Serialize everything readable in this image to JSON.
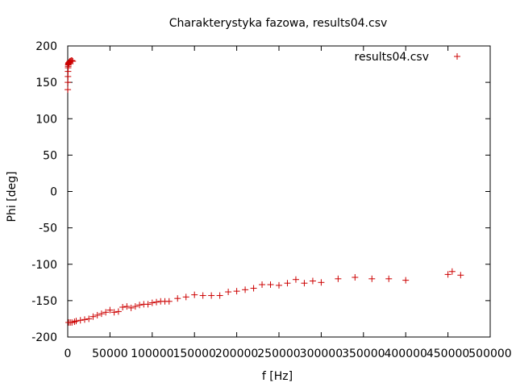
{
  "chart_data": {
    "type": "scatter",
    "title": "Charakterystyka fazowa, results04.csv",
    "xlabel": "f [Hz]",
    "ylabel": "Phi [deg]",
    "xlim": [
      0,
      500000
    ],
    "ylim": [
      -200,
      200
    ],
    "x_ticks": [
      "0",
      "50000",
      "100000",
      "150000",
      "200000",
      "250000",
      "300000",
      "350000",
      "400000",
      "450000",
      "500000"
    ],
    "x_tick_values": [
      0,
      50000,
      100000,
      150000,
      200000,
      250000,
      300000,
      350000,
      400000,
      450000,
      500000
    ],
    "y_ticks": [
      "200",
      "150",
      "100",
      "50",
      "0",
      "-50",
      "-100",
      "-150",
      "-200"
    ],
    "y_tick_values": [
      200,
      150,
      100,
      50,
      0,
      -50,
      -100,
      -150,
      -200
    ],
    "grid": false,
    "legend_position": "top-right",
    "marker": "+",
    "series": [
      {
        "name": "results04.csv",
        "color": "#cc0000",
        "x": [
          100,
          200,
          300,
          400,
          500,
          600,
          700,
          800,
          900,
          1000,
          1200,
          1500,
          2000,
          2500,
          3000,
          4000,
          5000,
          6000,
          1000,
          3000,
          5000,
          8000,
          10000,
          15000,
          20000,
          25000,
          30000,
          35000,
          40000,
          45000,
          50000,
          55000,
          60000,
          65000,
          70000,
          75000,
          80000,
          85000,
          90000,
          95000,
          100000,
          105000,
          110000,
          115000,
          120000,
          130000,
          140000,
          150000,
          160000,
          170000,
          180000,
          190000,
          200000,
          210000,
          220000,
          230000,
          240000,
          250000,
          260000,
          270000,
          280000,
          290000,
          300000,
          320000,
          340000,
          360000,
          380000,
          400000,
          450000,
          455000,
          465000
        ],
        "y": [
          140,
          150,
          158,
          165,
          170,
          172,
          174,
          175,
          176,
          176,
          177,
          177,
          178,
          179,
          179,
          180,
          180,
          179,
          -180,
          -180,
          -180,
          -179,
          -178,
          -177,
          -176,
          -175,
          -172,
          -170,
          -168,
          -166,
          -163,
          -166,
          -165,
          -159,
          -158,
          -160,
          -158,
          -156,
          -155,
          -155,
          -153,
          -152,
          -151,
          -151,
          -151,
          -147,
          -145,
          -142,
          -143,
          -143,
          -143,
          -138,
          -137,
          -135,
          -133,
          -128,
          -128,
          -129,
          -126,
          -121,
          -126,
          -123,
          -125,
          -120,
          -118,
          -120,
          -120,
          -122,
          -114,
          -110,
          -115
        ]
      }
    ]
  }
}
